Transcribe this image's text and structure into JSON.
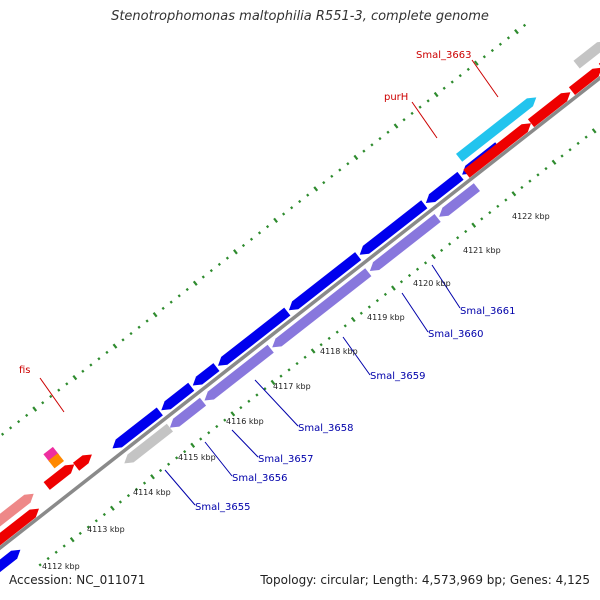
{
  "title": "Stenotrophomonas maltophilia R551-3, complete genome",
  "footer": {
    "accession": "Accession: NC_011071",
    "summary": "Topology: circular; Length: 4,573,969 bp; Genes: 4,125"
  },
  "colors": {
    "backbone": "#8a8a8a",
    "ticks": "#2e8b2e",
    "red": "#ee0000",
    "blue": "#0000ee",
    "cyan": "#22c4ee",
    "gray": "#c4c4c4",
    "lavender": "#8877dd",
    "pink": "#ee8888",
    "magenta": "#ee2ea0",
    "orange": "#ff8800",
    "label_red": "#cc0000",
    "label_blue": "#0000aa"
  },
  "scale_labels": [
    "4112 kbp",
    "4113 kbp",
    "4114 kbp",
    "4115 kbp",
    "4116 kbp",
    "4117 kbp",
    "4118 kbp",
    "4119 kbp",
    "4120 kbp",
    "4121 kbp",
    "4122 kbp"
  ],
  "gene_labels": [
    {
      "text": "Smal_3663",
      "color": "red"
    },
    {
      "text": "purH",
      "color": "red"
    },
    {
      "text": "fis",
      "color": "red"
    },
    {
      "text": "Smal_3661",
      "color": "blue"
    },
    {
      "text": "Smal_3660",
      "color": "blue"
    },
    {
      "text": "Smal_3659",
      "color": "blue"
    },
    {
      "text": "Smal_3658",
      "color": "blue"
    },
    {
      "text": "Smal_3657",
      "color": "blue"
    },
    {
      "text": "Smal_3656",
      "color": "blue"
    },
    {
      "text": "Smal_3655",
      "color": "blue"
    }
  ]
}
